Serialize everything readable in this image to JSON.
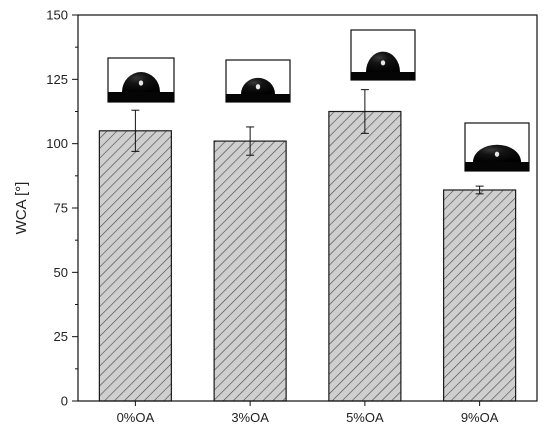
{
  "chart_data": {
    "type": "bar",
    "title": "",
    "xlabel": "",
    "ylabel": "WCA [°]",
    "categories": [
      "0%OA",
      "3%OA",
      "5%OA",
      "9%OA"
    ],
    "values": [
      105,
      101,
      112.5,
      82
    ],
    "errors": [
      8,
      5.5,
      8.5,
      1.5
    ],
    "ylim": [
      0,
      150
    ],
    "yticks": [
      0,
      25,
      50,
      75,
      100,
      125,
      150
    ],
    "grid": false,
    "legend": "none",
    "bar_fill": "#cfcfcf",
    "bar_hatch_color": "#444444",
    "insets": "water droplet photo above each bar"
  }
}
